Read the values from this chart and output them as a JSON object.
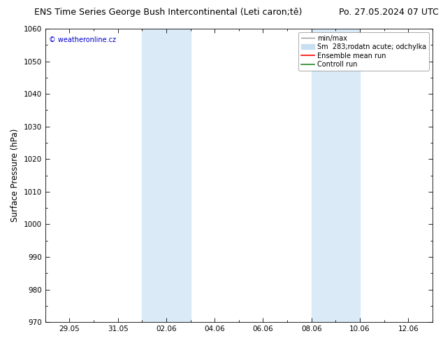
{
  "title_left": "ENS Time Series George Bush Intercontinental (Leti caron;tě)",
  "title_right": "Po. 27.05.2024 07 UTC",
  "ylabel": "Surface Pressure (hPa)",
  "ylim": [
    970,
    1060
  ],
  "yticks": [
    970,
    980,
    990,
    1000,
    1010,
    1020,
    1030,
    1040,
    1050,
    1060
  ],
  "x_labels": [
    "29.05",
    "31.05",
    "02.06",
    "04.06",
    "06.06",
    "08.06",
    "10.06",
    "12.06"
  ],
  "x_label_days": [
    1,
    3,
    5,
    7,
    9,
    11,
    13,
    15
  ],
  "xlim": [
    0,
    16
  ],
  "band1": [
    4,
    6
  ],
  "band2": [
    11,
    13
  ],
  "shade_color": "#daeaf7",
  "background_color": "#ffffff",
  "watermark": "© weatheronline.cz",
  "watermark_color": "#0000cc",
  "legend_labels": [
    "min/max",
    "Sm  283;rodatn acute; odchylka",
    "Ensemble mean run",
    "Controll run"
  ],
  "legend_colors": [
    "#999999",
    "#c8dff0",
    "#ff0000",
    "#228822"
  ],
  "title_fontsize": 9,
  "tick_fontsize": 7.5,
  "ylabel_fontsize": 8.5,
  "legend_fontsize": 7
}
